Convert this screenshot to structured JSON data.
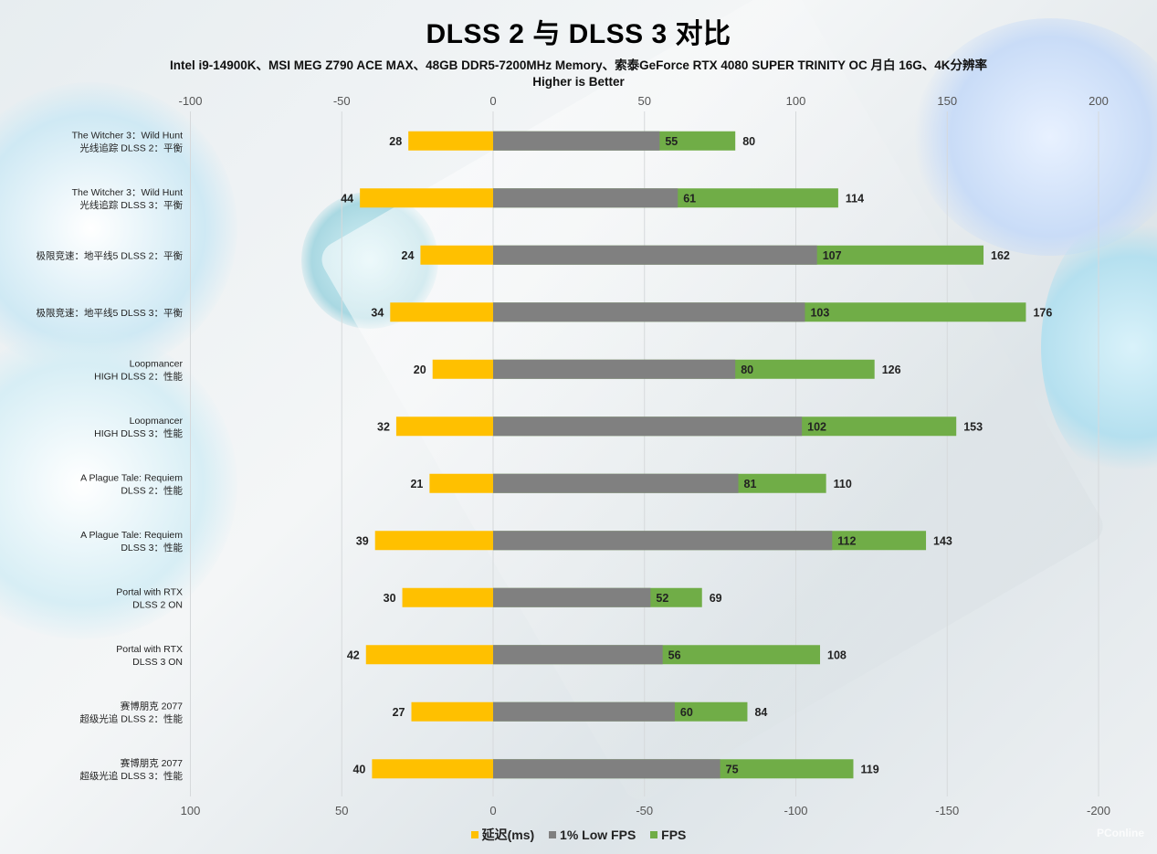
{
  "chart_data": {
    "type": "bar",
    "orientation": "horizontal",
    "title": "DLSS 2 与 DLSS 3 对比",
    "subtitle": "Intel i9-14900K、MSI MEG Z790 ACE MAX、48GB DDR5-7200MHz Memory、索泰GeForce RTX 4080 SUPER TRINITY OC 月白 16G、4K分辨率",
    "note": "Higher is Better",
    "top_axis_ticks": [
      "-100",
      "-50",
      "0",
      "50",
      "100",
      "150",
      "200"
    ],
    "bottom_axis_ticks": [
      "100",
      "50",
      "0",
      "-50",
      "-100",
      "-150",
      "-200"
    ],
    "xlim": [
      -100,
      200
    ],
    "legend_position": "bottom",
    "grid": true,
    "categories": [
      [
        "The Witcher 3：Wild Hunt",
        "光线追踪 DLSS 2：平衡"
      ],
      [
        "The Witcher 3：Wild Hunt",
        "光线追踪 DLSS 3：平衡"
      ],
      [
        "极限竞速：地平线5 DLSS 2：平衡"
      ],
      [
        "极限竞速：地平线5 DLSS 3：平衡"
      ],
      [
        "Loopmancer",
        "HIGH DLSS 2：性能"
      ],
      [
        "Loopmancer",
        "HIGH DLSS 3：性能"
      ],
      [
        "A Plague Tale: Requiem",
        "DLSS 2：性能"
      ],
      [
        "A Plague Tale: Requiem",
        "DLSS 3：性能"
      ],
      [
        "Portal with RTX",
        "DLSS 2 ON"
      ],
      [
        "Portal with RTX",
        "DLSS 3 ON"
      ],
      [
        "赛博朋克 2077",
        "超级光追 DLSS 2：性能"
      ],
      [
        "赛博朋克 2077",
        "超级光追 DLSS 3：性能"
      ]
    ],
    "series": [
      {
        "name": "延迟(ms)",
        "color": "#ffc000",
        "values": [
          28,
          44,
          24,
          34,
          20,
          32,
          21,
          39,
          30,
          42,
          27,
          40
        ]
      },
      {
        "name": "1% Low FPS",
        "color": "#808080",
        "values": [
          55,
          61,
          107,
          103,
          80,
          102,
          81,
          112,
          52,
          56,
          60,
          75
        ]
      },
      {
        "name": "FPS",
        "color": "#70ad47",
        "values": [
          80,
          114,
          162,
          176,
          126,
          153,
          110,
          143,
          69,
          108,
          84,
          119
        ]
      }
    ]
  },
  "watermark": "PConline"
}
